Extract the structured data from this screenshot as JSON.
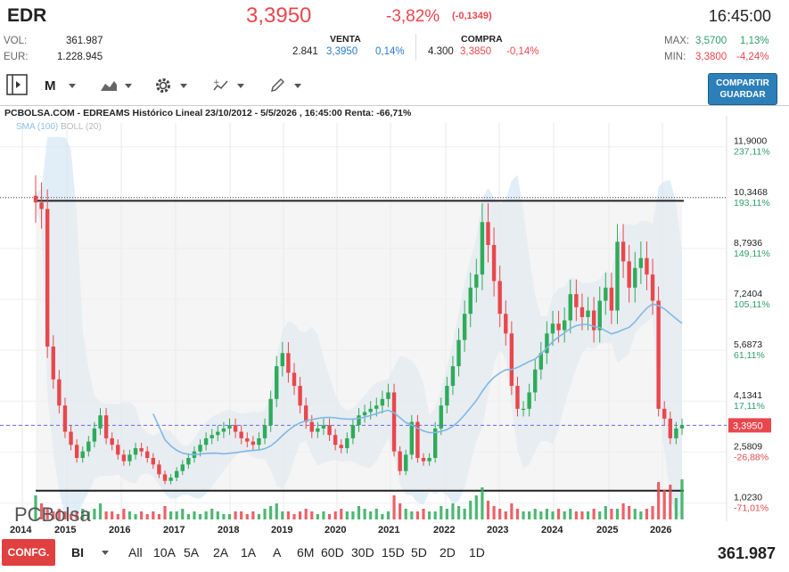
{
  "header": {
    "ticker": "EDR",
    "price": "3,3950",
    "change_pct": "-3,82%",
    "change_abs": "(-0,1349)",
    "time": "16:45:00",
    "vol_label": "VOL:",
    "vol_value": "361.987",
    "eur_label": "EUR:",
    "eur_value": "1.228.945",
    "venta_label": "VENTA",
    "venta_qty": "2.841",
    "venta_price": "3,3950",
    "venta_pct": "0,14%",
    "compra_label": "COMPRA",
    "compra_qty": "4.300",
    "compra_price": "3,3850",
    "compra_pct": "-0,14%",
    "max_label": "MAX:",
    "max_value": "3,5700",
    "max_pct": "1,13%",
    "min_label": "MIN:",
    "min_value": "3,3800",
    "min_pct": "-4,24%"
  },
  "toolbar": {
    "period_selector": "M",
    "share_line1": "COMPARTIR",
    "share_line2": "GUARDAR"
  },
  "chart_header": {
    "title": "PCBOLSA.COM - EDREAMS Histórico Lineal 23/10/2012 - 5/5/2026 , 16:45:00 Renta: -66,71%",
    "legend_sma": "SMA (100)",
    "legend_boll": "BOLL (20)",
    "watermark": "PCBolsa"
  },
  "chart_data": {
    "type": "candlestick",
    "x_ticks": [
      "2014",
      "2015",
      "2016",
      "2017",
      "2018",
      "2019",
      "2020",
      "2021",
      "2022",
      "2023",
      "2024",
      "2025",
      "2026"
    ],
    "y_ticks": [
      {
        "price": "11,9000",
        "pct": "237,11%"
      },
      {
        "price": "10,3468",
        "pct": "193,11%"
      },
      {
        "price": "8,7936",
        "pct": "149,11%"
      },
      {
        "price": "7,2404",
        "pct": "105,11%"
      },
      {
        "price": "5,6873",
        "pct": "61,11%"
      },
      {
        "price": "4,1341",
        "pct": "17,11%"
      },
      {
        "price": "3,3950",
        "pct": ""
      },
      {
        "price": "2,5809",
        "pct": "-26,88%"
      },
      {
        "price": "1,0230",
        "pct": "-71,01%"
      }
    ],
    "ylim": [
      0.5,
      12.5
    ],
    "last_price": 3.395,
    "series_close": [
      10.2,
      10.0,
      5.8,
      4.8,
      4.0,
      3.2,
      2.8,
      2.4,
      2.6,
      2.9,
      3.3,
      3.7,
      3.0,
      2.8,
      2.5,
      2.3,
      2.5,
      2.7,
      2.6,
      2.4,
      2.2,
      1.9,
      1.7,
      1.8,
      2.0,
      2.2,
      2.4,
      2.6,
      2.8,
      3.0,
      3.1,
      3.2,
      3.3,
      3.4,
      3.2,
      3.0,
      2.9,
      2.8,
      3.0,
      3.4,
      4.2,
      5.2,
      5.6,
      5.0,
      4.6,
      4.0,
      3.5,
      3.2,
      3.3,
      3.4,
      3.1,
      2.8,
      2.7,
      3.0,
      3.4,
      3.7,
      3.8,
      3.9,
      4.0,
      4.2,
      4.4,
      2.6,
      2.0,
      2.5,
      3.5,
      2.4,
      2.3,
      2.4,
      3.3,
      4.0,
      4.6,
      5.2,
      6.0,
      6.8,
      7.6,
      8.0,
      9.6,
      8.9,
      7.8,
      6.8,
      6.2,
      4.6,
      3.9,
      3.9,
      4.4,
      5.1,
      5.6,
      6.2,
      6.5,
      6.3,
      6.6,
      7.4,
      7.0,
      6.7,
      6.9,
      6.3,
      7.2,
      7.6,
      6.9,
      9.0,
      8.4,
      7.6,
      8.2,
      8.5,
      8.0,
      7.2,
      3.9,
      3.6,
      3.0,
      3.3,
      3.395
    ],
    "vol_values": [
      9,
      6,
      4,
      3,
      4,
      3,
      2,
      3,
      4,
      3,
      4,
      6,
      3,
      3,
      2,
      4,
      3,
      2,
      3,
      2,
      3,
      2,
      5,
      3,
      3,
      4,
      2,
      3,
      2,
      3,
      4,
      3,
      2,
      2,
      3,
      3,
      2,
      3,
      2,
      4,
      5,
      6,
      3,
      3,
      2,
      3,
      4,
      3,
      2,
      3,
      2,
      3,
      4,
      3,
      3,
      5,
      4,
      3,
      4,
      2,
      3,
      9,
      6,
      4,
      3,
      3,
      4,
      3,
      3,
      5,
      4,
      6,
      5,
      4,
      7,
      9,
      12,
      7,
      5,
      4,
      3,
      6,
      4,
      3,
      3,
      4,
      3,
      4,
      3,
      4,
      3,
      4,
      3,
      3,
      3,
      4,
      3,
      5,
      4,
      4,
      6,
      5,
      4,
      3,
      4,
      5,
      14,
      11,
      13,
      8,
      15
    ]
  },
  "bottom": {
    "conf_label": "CONFG.",
    "scale_label": "BI",
    "periods": [
      "All",
      "10A",
      "5A",
      "2A",
      "1A",
      "A",
      "6M",
      "60D",
      "30D",
      "15D",
      "5D",
      "2D",
      "1D"
    ],
    "volume_total": "361.987"
  },
  "colors": {
    "up": "#2eab5b",
    "down": "#e8474d",
    "accent": "#2c7fb8",
    "band": "#cfe3f2",
    "sma": "#7fb8e6"
  }
}
